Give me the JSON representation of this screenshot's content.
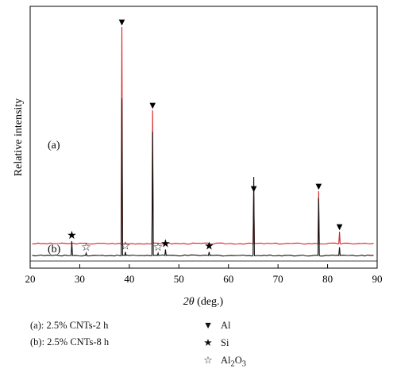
{
  "chart_data": {
    "type": "line",
    "xlabel_symbol": "2θ",
    "xlabel_unit": "(deg.)",
    "ylabel": "Relative intensity",
    "xlim": [
      20,
      90
    ],
    "x_ticks": [
      "20",
      "30",
      "40",
      "50",
      "60",
      "70",
      "80",
      "90"
    ],
    "series": [
      {
        "name": "(a)",
        "color": "#d62020",
        "baseline": 0.5,
        "peaks": [
          {
            "x": 38.5,
            "height": 9.1,
            "marker": "Al"
          },
          {
            "x": 44.7,
            "height": 5.6,
            "marker": "Al"
          },
          {
            "x": 65.1,
            "height": 2.1,
            "marker": "Al"
          },
          {
            "x": 78.2,
            "height": 2.2,
            "marker": "Al"
          },
          {
            "x": 82.4,
            "height": 0.5,
            "marker": "Al"
          }
        ]
      },
      {
        "name": "(b)",
        "color": "#111111",
        "baseline": 0,
        "peaks": [
          {
            "x": 28.4,
            "height": 0.6,
            "marker": "Si"
          },
          {
            "x": 31.3,
            "height": 0.1,
            "marker": "Al2O3"
          },
          {
            "x": 38.5,
            "height": 6.6
          },
          {
            "x": 39.2,
            "height": 0.15,
            "marker": "Al2O3"
          },
          {
            "x": 44.7,
            "height": 5.2
          },
          {
            "x": 45.8,
            "height": 0.1,
            "marker": "Al2O3"
          },
          {
            "x": 47.3,
            "height": 0.25,
            "marker": "Si"
          },
          {
            "x": 56.1,
            "height": 0.15,
            "marker": "Si"
          },
          {
            "x": 65.1,
            "height": 3.3
          },
          {
            "x": 78.2,
            "height": 2.4
          },
          {
            "x": 82.4,
            "height": 0.35
          }
        ]
      }
    ],
    "markers": {
      "Al": {
        "glyph": "▼"
      },
      "Si": {
        "glyph": "★"
      },
      "Al2O3": {
        "glyph": "☆"
      }
    },
    "grid": false
  },
  "legend": {
    "series": [
      {
        "text": "(a): 2.5% CNTs-2 h"
      },
      {
        "text": "(b): 2.5% CNTs-8 h"
      }
    ],
    "phases": [
      {
        "glyph": "▼",
        "label": "Al"
      },
      {
        "glyph": "★",
        "label": "Si"
      },
      {
        "glyph": "☆",
        "label_main": "Al",
        "sub1": "2",
        "label_mid": "O",
        "sub2": "3"
      }
    ]
  }
}
